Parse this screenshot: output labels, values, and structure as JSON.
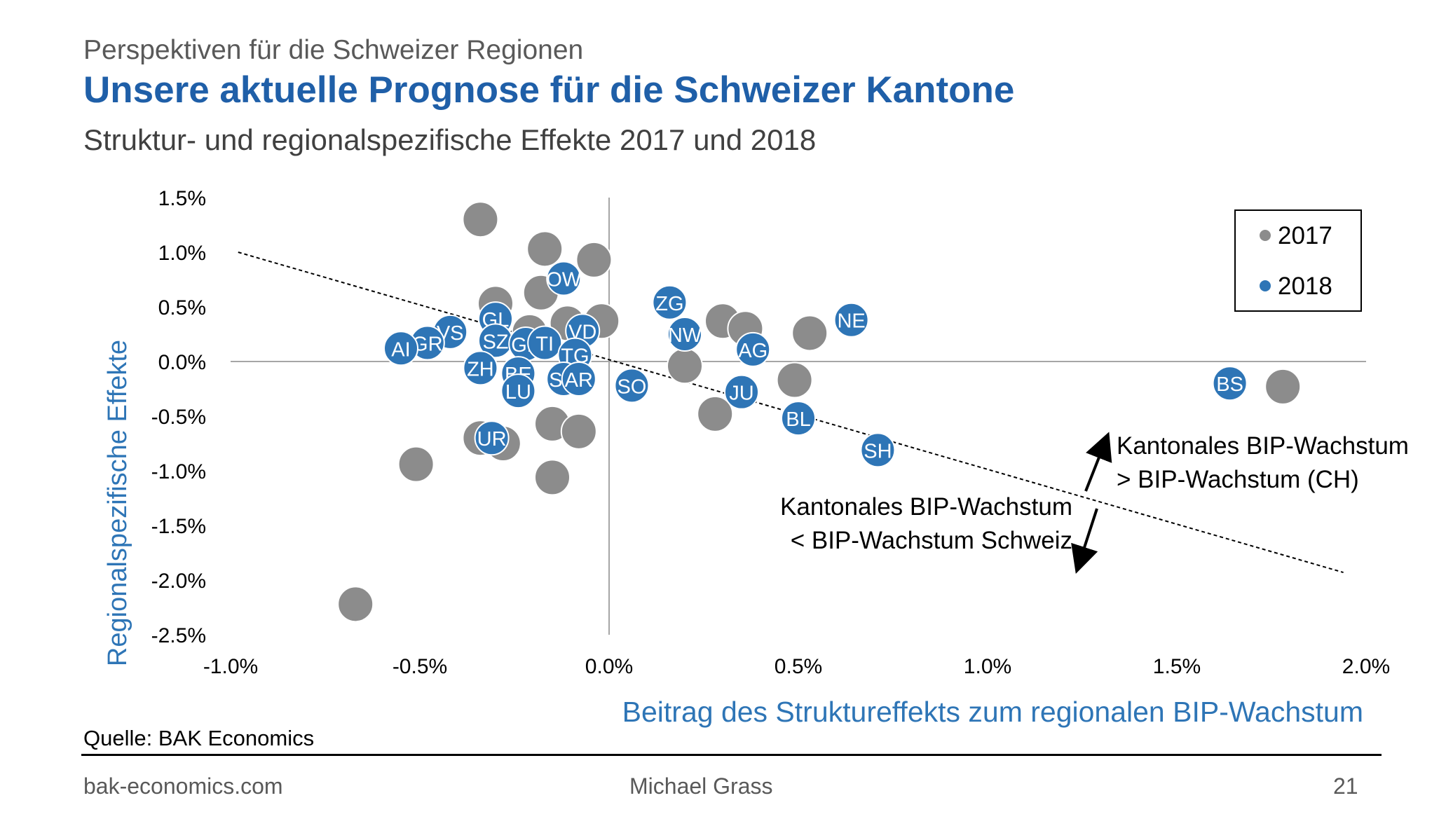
{
  "header": {
    "supertitle": "Perspektiven für die Schweizer Regionen",
    "title": "Unsere aktuelle Prognose für die Schweizer Kantone",
    "subtitle": "Struktur- und regionalspezifische Effekte 2017 und 2018"
  },
  "footer": {
    "source": "Quelle: BAK Economics",
    "website": "bak-economics.com",
    "author": "Michael Grass",
    "page_number": "21"
  },
  "colors": {
    "s2017": "#8c8c8c",
    "s2018": "#2e75b6",
    "title": "#1f5fa8",
    "axis_label": "#2e75b6"
  },
  "chart_data": {
    "type": "scatter",
    "xlabel": "Beitrag des Struktureffekts zum regionalen BIP-Wachstum",
    "ylabel": "Regionalspezifische Effekte",
    "xlim": [
      -1.0,
      2.0
    ],
    "ylim": [
      -2.5,
      1.5
    ],
    "xticks": [
      -1.0,
      -0.5,
      0.0,
      0.5,
      1.0,
      1.5,
      2.0
    ],
    "xtick_labels": [
      "-1.0%",
      "-0.5%",
      "0.0%",
      "0.5%",
      "1.0%",
      "1.5%",
      "2.0%"
    ],
    "yticks": [
      1.5,
      1.0,
      0.5,
      0.0,
      -0.5,
      -1.0,
      -1.5,
      -2.0,
      -2.5
    ],
    "ytick_labels": [
      "1.5%",
      "1.0%",
      "0.5%",
      "0.0%",
      "-0.5%",
      "-1.0%",
      "-1.5%",
      "-2.0%",
      "-2.5%"
    ],
    "legend_position": "top-right",
    "series": [
      {
        "name": "2017",
        "points": [
          {
            "x": -0.34,
            "y": 1.3
          },
          {
            "x": -0.17,
            "y": 1.03
          },
          {
            "x": -0.04,
            "y": 0.93
          },
          {
            "x": -0.18,
            "y": 0.63
          },
          {
            "x": -0.3,
            "y": 0.53
          },
          {
            "x": -0.11,
            "y": 0.35
          },
          {
            "x": -0.02,
            "y": 0.37
          },
          {
            "x": -0.21,
            "y": 0.27
          },
          {
            "x": 0.3,
            "y": 0.37
          },
          {
            "x": 0.36,
            "y": 0.3
          },
          {
            "x": 0.53,
            "y": 0.26
          },
          {
            "x": 0.2,
            "y": -0.04
          },
          {
            "x": 0.49,
            "y": -0.17
          },
          {
            "x": 0.28,
            "y": -0.48
          },
          {
            "x": -0.15,
            "y": -0.57
          },
          {
            "x": -0.08,
            "y": -0.64
          },
          {
            "x": -0.34,
            "y": -0.7
          },
          {
            "x": -0.28,
            "y": -0.75
          },
          {
            "x": -0.51,
            "y": -0.94
          },
          {
            "x": -0.15,
            "y": -1.06
          },
          {
            "x": -0.67,
            "y": -2.22
          },
          {
            "x": 1.78,
            "y": -0.23
          }
        ]
      },
      {
        "name": "2018",
        "points": [
          {
            "x": -0.12,
            "y": 0.76,
            "label": "OW"
          },
          {
            "x": 0.16,
            "y": 0.54,
            "label": "ZG"
          },
          {
            "x": 0.64,
            "y": 0.38,
            "label": "NE"
          },
          {
            "x": -0.3,
            "y": 0.39,
            "label": "GL"
          },
          {
            "x": -0.07,
            "y": 0.28,
            "label": "VD"
          },
          {
            "x": -0.42,
            "y": 0.27,
            "label": "VS"
          },
          {
            "x": 0.2,
            "y": 0.25,
            "label": "NW"
          },
          {
            "x": -0.48,
            "y": 0.17,
            "label": "GR"
          },
          {
            "x": -0.3,
            "y": 0.19,
            "label": "SZ"
          },
          {
            "x": -0.22,
            "y": 0.16,
            "label": "GE"
          },
          {
            "x": -0.17,
            "y": 0.17,
            "label": "TI"
          },
          {
            "x": -0.55,
            "y": 0.12,
            "label": "AI"
          },
          {
            "x": 0.38,
            "y": 0.11,
            "label": "AG"
          },
          {
            "x": -0.09,
            "y": 0.06,
            "label": "TG"
          },
          {
            "x": -0.34,
            "y": -0.06,
            "label": "ZH"
          },
          {
            "x": -0.24,
            "y": -0.11,
            "label": "BE"
          },
          {
            "x": -0.12,
            "y": -0.16,
            "label": "SG"
          },
          {
            "x": -0.08,
            "y": -0.16,
            "label": "AR"
          },
          {
            "x": 0.06,
            "y": -0.22,
            "label": "SO"
          },
          {
            "x": -0.24,
            "y": -0.27,
            "label": "LU"
          },
          {
            "x": 0.35,
            "y": -0.28,
            "label": "JU"
          },
          {
            "x": 0.5,
            "y": -0.52,
            "label": "BL"
          },
          {
            "x": -0.31,
            "y": -0.7,
            "label": "UR"
          },
          {
            "x": 0.71,
            "y": -0.81,
            "label": "SH"
          },
          {
            "x": 1.64,
            "y": -0.2,
            "label": "BS"
          }
        ]
      }
    ],
    "trendline": {
      "x": [
        -0.98,
        1.94
      ],
      "y": [
        1.0,
        -1.93
      ]
    },
    "annotations": {
      "above": [
        "Kantonales BIP-Wachstum",
        "> BIP-Wachstum (CH)"
      ],
      "below": [
        "Kantonales BIP-Wachstum",
        "< BIP-Wachstum Schweiz"
      ]
    }
  }
}
